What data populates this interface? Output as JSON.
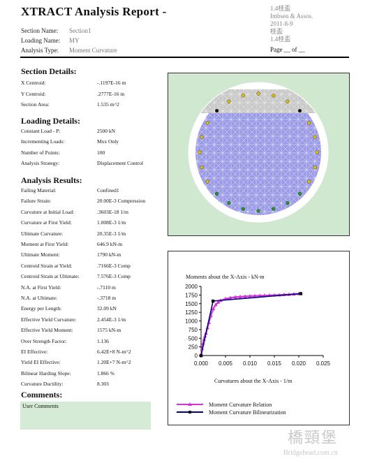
{
  "report": {
    "title": "XTRACT Analysis Report -",
    "meta": [
      {
        "label": "Section Name:",
        "value": "Section1"
      },
      {
        "label": "Loading Name:",
        "value": "MY"
      },
      {
        "label": "Analysis Type:",
        "value": "Moment Curvature"
      }
    ],
    "header_right": [
      "1.4桂盃",
      "Imbsen & Assos.",
      "2011-8-9",
      "桂盃",
      "1.4桂盃"
    ],
    "page_line": "Page __ of __"
  },
  "section_details": {
    "heading": "Section Details:",
    "rows": [
      {
        "label": "X Centroid:",
        "value": "-.1197E-16  m"
      },
      {
        "label": "Y Centroid:",
        "value": ".2777E-16  m"
      },
      {
        "label": "Section Area:",
        "value": "1.535  m^2"
      }
    ]
  },
  "loading_details": {
    "heading": "Loading Details:",
    "rows": [
      {
        "label": "Constant Load - P:",
        "value": "2500  kN"
      },
      {
        "label": "Incrementing Loads:",
        "value": "Mxx Only"
      },
      {
        "label": "Number of Points:",
        "value": "100"
      },
      {
        "label": "Analysis Strategy:",
        "value": "Displacement Control"
      }
    ]
  },
  "analysis_results": {
    "heading": "Analysis Results:",
    "rows": [
      {
        "label": "Failing Material:",
        "value": "Confined1"
      },
      {
        "label": "Failure Strain:",
        "value": "20.00E-3  Compression"
      },
      {
        "label": "Curvature at Initial Load:",
        "value": ".3603E-18  1/m"
      },
      {
        "label": "Curvature at First Yield:",
        "value": "1.008E-3  1/m"
      },
      {
        "label": "Ultimate Curvature:",
        "value": "20.35E-3  1/m"
      },
      {
        "label": "Moment at First Yield:",
        "value": "646.9  kN-m"
      },
      {
        "label": "Ultimate Moment:",
        "value": "1790  kN-m"
      },
      {
        "label": "Centroid Strain at Yield:",
        "value": ".7166E-3  Comp"
      },
      {
        "label": "Centroid Strain at Ultimate:",
        "value": "7.576E-3  Comp"
      },
      {
        "label": "N.A. at First Yield:",
        "value": "-.7110  m"
      },
      {
        "label": "N.A. at Ultimate:",
        "value": "-.3718  m"
      },
      {
        "label": "Energy per Length:",
        "value": "32.09  kN"
      },
      {
        "label": "Effective Yield Curvature:",
        "value": "2.454E-3  1/m"
      },
      {
        "label": "Effective Yield Moment:",
        "value": "1575  kN-m"
      },
      {
        "label": "Over Strength Factor:",
        "value": "1.136"
      },
      {
        "label": "EI Effective:",
        "value": "6.42E+8  N-m^2"
      },
      {
        "label": "Yield EI Effective:",
        "value": "1.20E+7  N-m^2"
      },
      {
        "label": "Bilinear Harding Slope:",
        "value": "1.866  %"
      },
      {
        "label": "Curvature Ductility:",
        "value": "8.303"
      }
    ]
  },
  "comments": {
    "heading": "Comments:",
    "text": "User Comments"
  },
  "colors": {
    "panel_bg": "#cfe8cf",
    "section_fill": "#9a9ae6",
    "compression_zone": "#c33bc3",
    "grey_zone": "#c8c8c8",
    "yield_marker": "#e0c000",
    "tension_marker": "#229922",
    "relation_line": "#d633d6",
    "bilinear_line": "#000080"
  },
  "chart_data": {
    "type": "line",
    "title": "Moments about the X-Axis - kN-m",
    "xlabel": "Curvatures about the X-Axis - 1/m",
    "ylabel": "",
    "xlim": [
      0.0,
      0.025
    ],
    "ylim": [
      0,
      2000
    ],
    "xticks": [
      "0.000",
      "0.005",
      "0.010",
      "0.015",
      "0.020",
      "0.025"
    ],
    "yticks": [
      "0",
      "250",
      "500",
      "750",
      "1000",
      "1250",
      "1500",
      "1750",
      "2000"
    ],
    "legend_position": "bottom",
    "series": [
      {
        "name": "Moment Curvature Relation",
        "color": "#d633d6",
        "marker": "triangle",
        "x": [
          0.0,
          0.0002,
          0.0004,
          0.0006,
          0.0008,
          0.001,
          0.0013,
          0.0016,
          0.002,
          0.0025,
          0.003,
          0.0035,
          0.004,
          0.005,
          0.006,
          0.007,
          0.008,
          0.009,
          0.01,
          0.011,
          0.012,
          0.013,
          0.014,
          0.015,
          0.016,
          0.017,
          0.018,
          0.019,
          0.02,
          0.0204
        ],
        "y": [
          0,
          200,
          350,
          470,
          560,
          647,
          800,
          950,
          1150,
          1350,
          1470,
          1540,
          1590,
          1640,
          1670,
          1690,
          1700,
          1710,
          1720,
          1725,
          1730,
          1735,
          1740,
          1745,
          1750,
          1760,
          1765,
          1775,
          1785,
          1790
        ]
      },
      {
        "name": "Moment Curvature Bilinearization",
        "color": "#000080",
        "marker": "square",
        "x": [
          0.0,
          0.002454,
          0.0204
        ],
        "y": [
          0,
          1575,
          1790
        ]
      }
    ]
  },
  "watermark": {
    "text": "橋頸堡",
    "sub": "Bridgehead.com.cn"
  }
}
